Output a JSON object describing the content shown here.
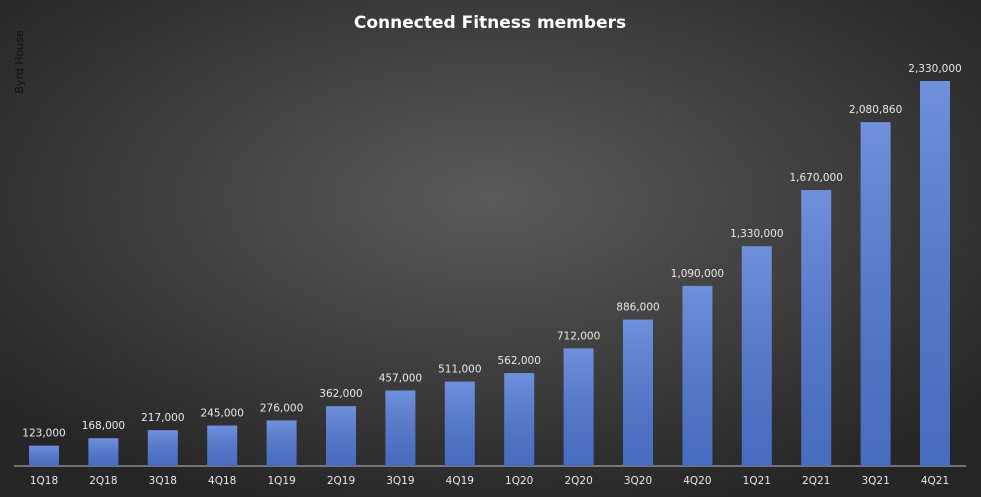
{
  "chart_data": {
    "type": "bar",
    "title": "Connected  Fitness  members",
    "annotation": "Byrd House",
    "categories": [
      "1Q18",
      "2Q18",
      "3Q18",
      "4Q18",
      "1Q19",
      "2Q19",
      "3Q19",
      "4Q19",
      "1Q20",
      "2Q20",
      "3Q20",
      "4Q20",
      "1Q21",
      "2Q21",
      "3Q21",
      "4Q21"
    ],
    "values": [
      123000,
      168000,
      217000,
      245000,
      276000,
      362000,
      457000,
      511000,
      562000,
      712000,
      886000,
      1090000,
      1330000,
      1670000,
      2080860,
      2330000
    ],
    "value_labels": [
      "123,000",
      "168,000",
      "217,000",
      "245,000",
      "276,000",
      "362,000",
      "457,000",
      "511,000",
      "562,000",
      "712,000",
      "886,000",
      "1,090,000",
      "1,330,000",
      "1,670,000",
      "2,080,860",
      "2,330,000"
    ],
    "color": "#5078d4"
  }
}
